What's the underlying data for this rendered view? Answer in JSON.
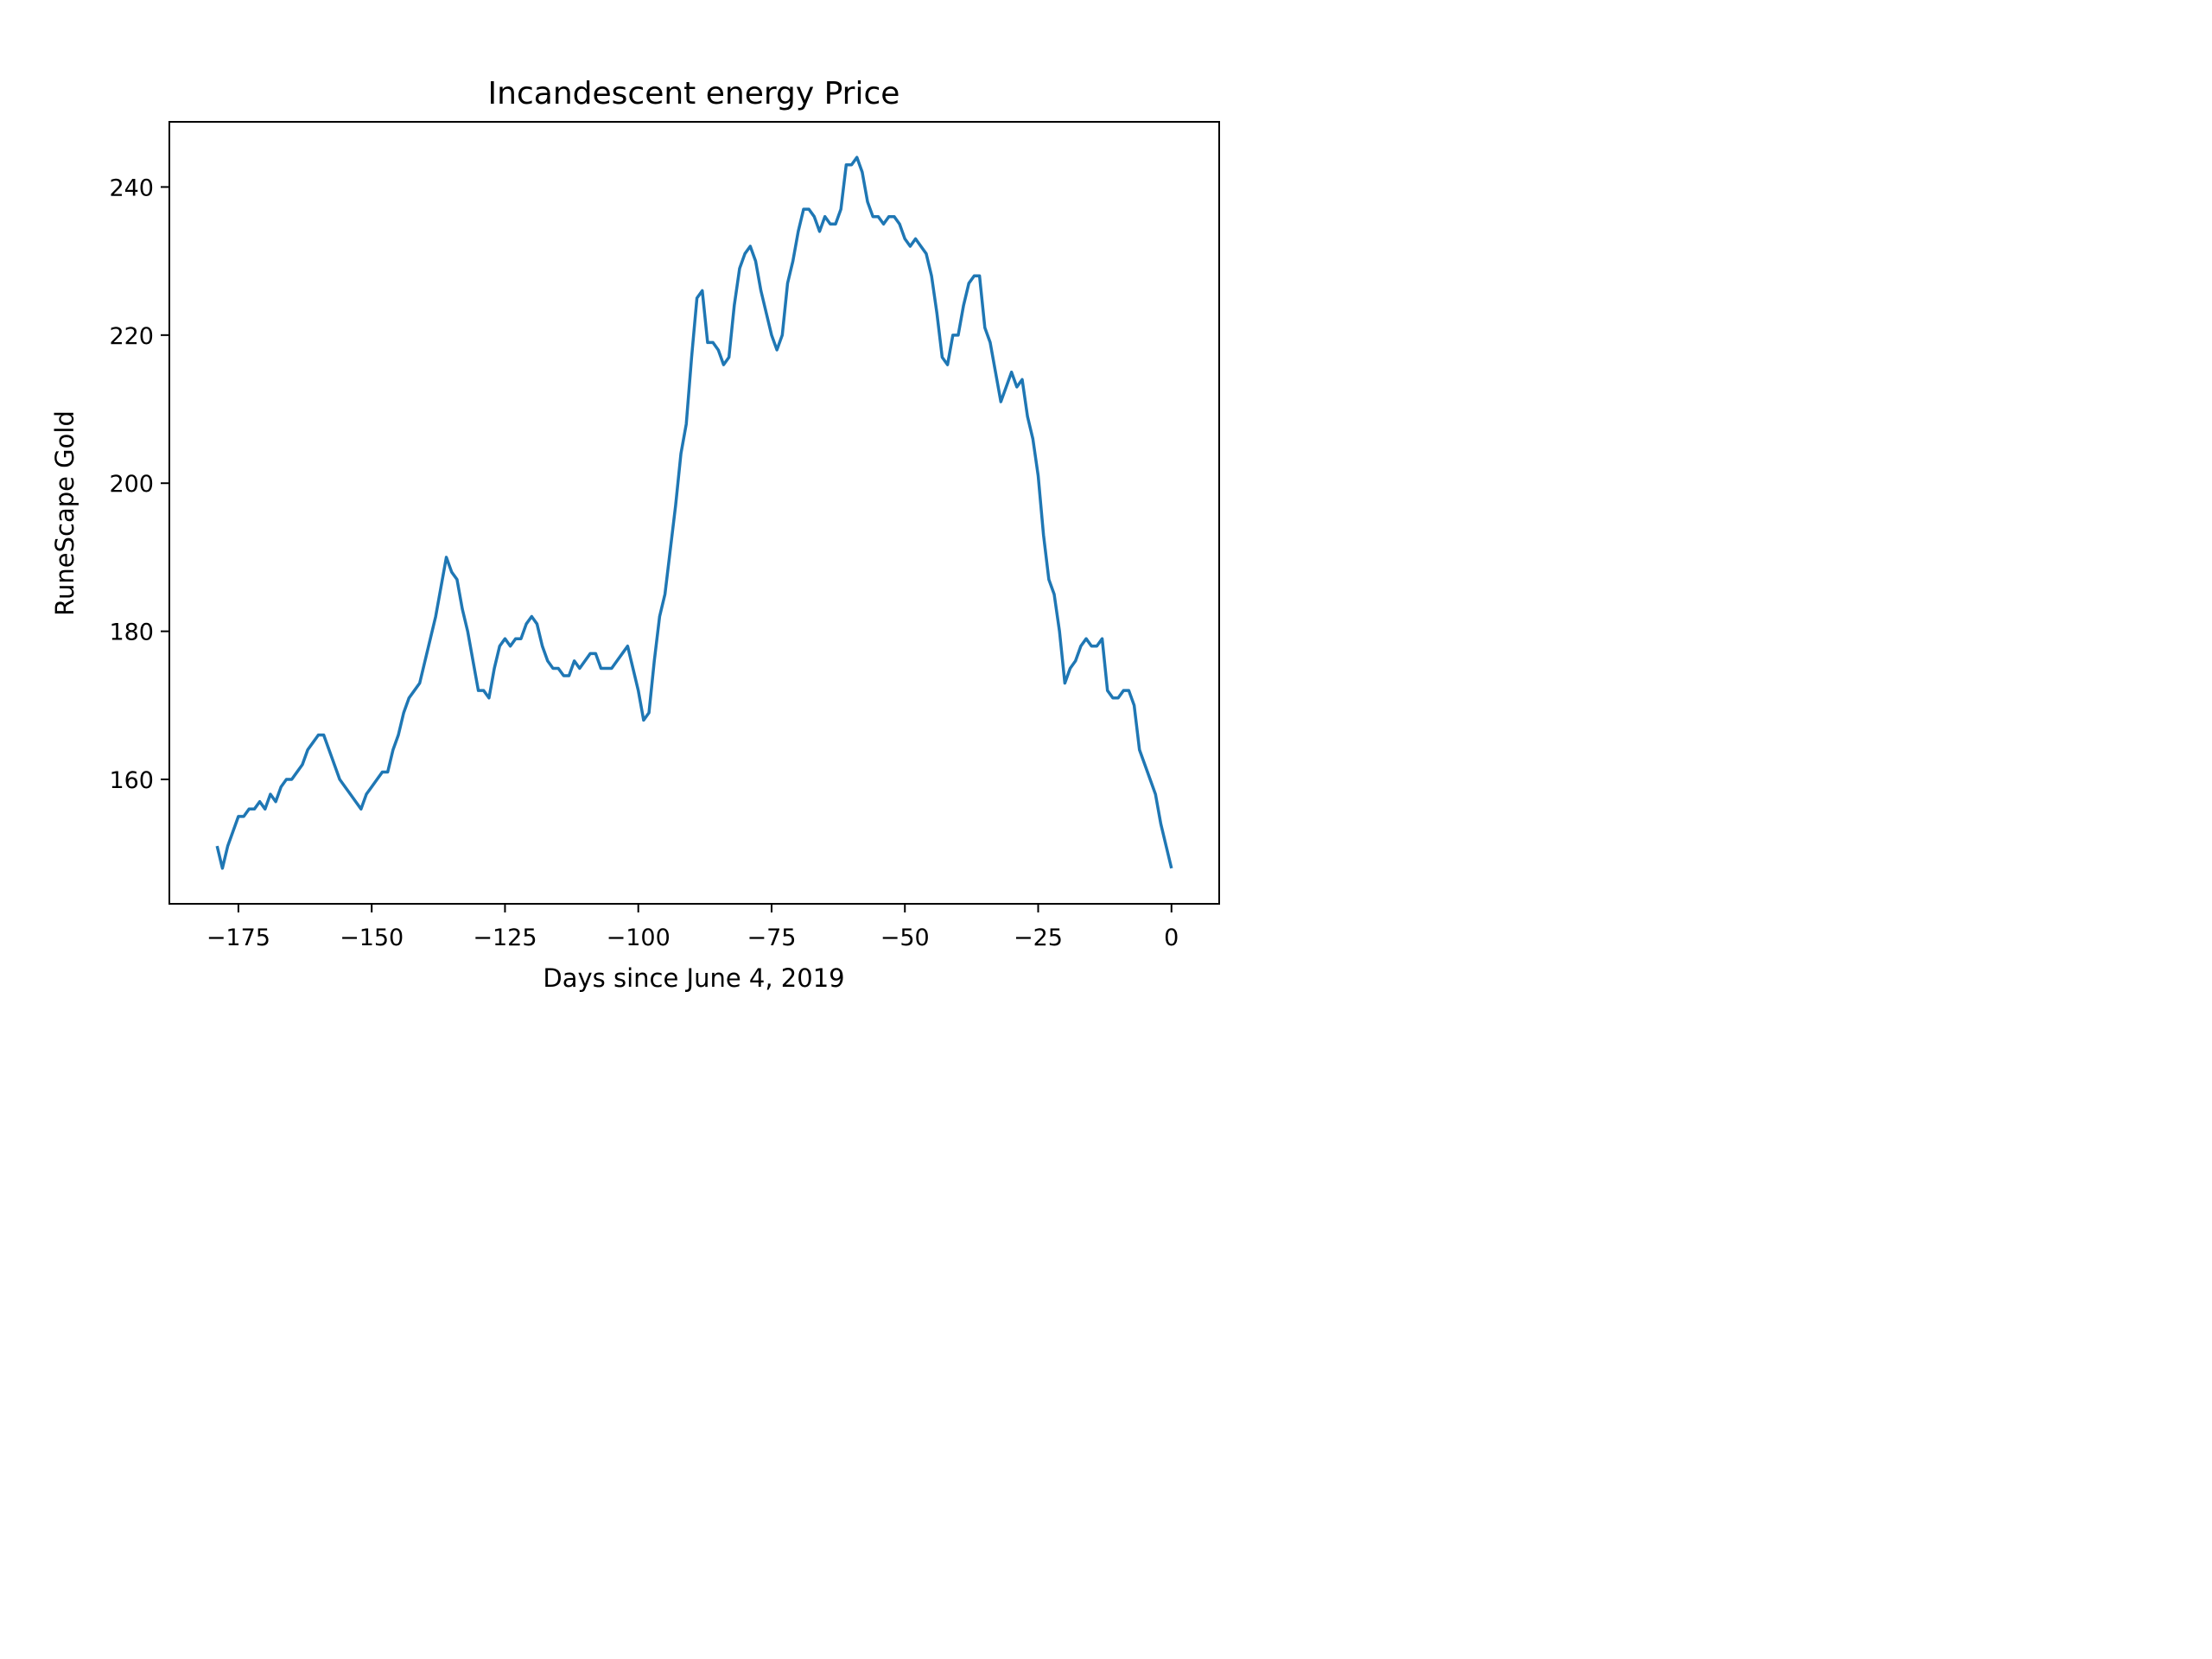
{
  "chart_data": {
    "type": "line",
    "title": "Incandescent energy Price",
    "xlabel": "Days since June 4, 2019",
    "ylabel": "RuneScape Gold",
    "xlim": [
      -187.95,
      8.95
    ],
    "ylim": [
      143.2,
      248.8
    ],
    "xticks": [
      -175,
      -150,
      -125,
      -100,
      -75,
      -50,
      -25,
      0
    ],
    "xtick_labels": [
      "−175",
      "−150",
      "−125",
      "−100",
      "−75",
      "−50",
      "−25",
      "0"
    ],
    "yticks": [
      160,
      180,
      200,
      220,
      240
    ],
    "ytick_labels": [
      "160",
      "180",
      "200",
      "220",
      "240"
    ],
    "grid": false,
    "color": "#1f77b4",
    "series": [
      {
        "x": [
          -179,
          -178,
          -177,
          -176,
          -175,
          -174,
          -173,
          -172,
          -171,
          -170,
          -169,
          -168,
          -167,
          -166,
          -165,
          -164,
          -163,
          -162,
          -161,
          -160,
          -159,
          -158,
          -157,
          -156,
          -155,
          -154,
          -153,
          -152,
          -151,
          -150,
          -149,
          -148,
          -147,
          -146,
          -145,
          -144,
          -143,
          -142,
          -141,
          -140,
          -139,
          -138,
          -137,
          -136,
          -135,
          -134,
          -133,
          -132,
          -131,
          -130,
          -129,
          -128,
          -127,
          -126,
          -125,
          -124,
          -123,
          -122,
          -121,
          -120,
          -119,
          -118,
          -117,
          -116,
          -115,
          -114,
          -113,
          -112,
          -111,
          -110,
          -109,
          -108,
          -107,
          -106,
          -105,
          -104,
          -103,
          -102,
          -101,
          -100,
          -99,
          -98,
          -97,
          -96,
          -95,
          -94,
          -93,
          -92,
          -91,
          -90,
          -89,
          -88,
          -87,
          -86,
          -85,
          -84,
          -83,
          -82,
          -81,
          -80,
          -79,
          -78,
          -77,
          -76,
          -75,
          -74,
          -73,
          -72,
          -71,
          -70,
          -69,
          -68,
          -67,
          -66,
          -65,
          -64,
          -63,
          -62,
          -61,
          -60,
          -59,
          -58,
          -57,
          -56,
          -55,
          -54,
          -53,
          -52,
          -51,
          -50,
          -49,
          -48,
          -47,
          -46,
          -45,
          -44,
          -43,
          -42,
          -41,
          -40,
          -39,
          -38,
          -37,
          -36,
          -35,
          -34,
          -33,
          -32,
          -31,
          -30,
          -29,
          -28,
          -27,
          -26,
          -25,
          -24,
          -23,
          -22,
          -21,
          -20,
          -19,
          -18,
          -17,
          -16,
          -15,
          -14,
          -13,
          -12,
          -11,
          -10,
          -9,
          -8,
          -7,
          -6,
          -5,
          -4,
          -3,
          -2,
          -1,
          0
        ],
        "y": [
          151,
          148,
          151,
          153,
          155,
          155,
          156,
          156,
          157,
          156,
          158,
          157,
          159,
          160,
          160,
          161,
          162,
          164,
          165,
          166,
          166,
          164,
          162,
          160,
          159,
          158,
          157,
          156,
          158,
          159,
          160,
          161,
          161,
          164,
          166,
          169,
          171,
          172,
          173,
          176,
          179,
          182,
          186,
          190,
          188,
          187,
          183,
          180,
          176,
          172,
          172,
          171,
          175,
          178,
          179,
          178,
          179,
          179,
          181,
          182,
          181,
          178,
          176,
          175,
          175,
          174,
          174,
          176,
          175,
          176,
          177,
          177,
          175,
          175,
          175,
          176,
          177,
          178,
          175,
          172,
          168,
          169,
          176,
          182,
          185,
          191,
          197,
          204,
          208,
          217,
          225,
          226,
          219,
          219,
          218,
          216,
          217,
          224,
          229,
          231,
          232,
          230,
          226,
          223,
          220,
          218,
          220,
          227,
          230,
          234,
          237,
          237,
          236,
          234,
          236,
          235,
          235,
          237,
          243,
          243,
          244,
          242,
          238,
          236,
          236,
          235,
          236,
          236,
          235,
          233,
          232,
          233,
          232,
          231,
          228,
          223,
          217,
          216,
          220,
          220,
          224,
          227,
          228,
          228,
          221,
          219,
          215,
          211,
          213,
          215,
          213,
          214,
          209,
          206,
          201,
          193,
          187,
          185,
          180,
          173,
          175,
          176,
          178,
          179,
          178,
          178,
          179,
          172,
          171,
          171,
          172,
          172,
          170,
          164,
          162,
          160,
          158,
          154,
          151,
          148
        ]
      }
    ]
  }
}
